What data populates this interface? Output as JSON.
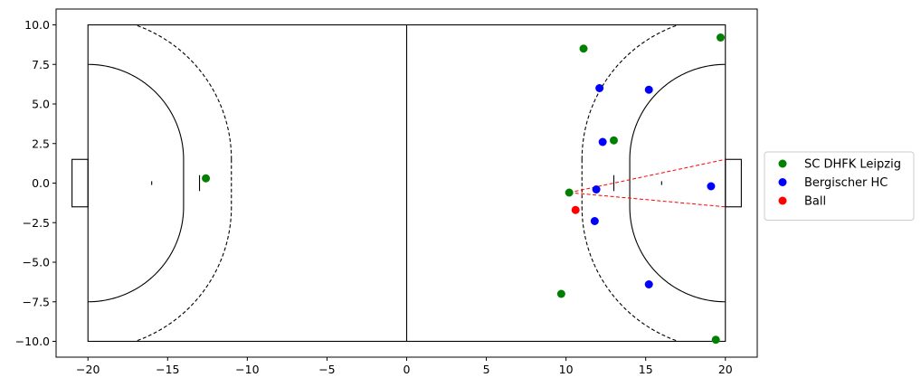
{
  "chart_data": {
    "type": "scatter",
    "xlim": [
      -22,
      22
    ],
    "ylim": [
      -11,
      11
    ],
    "x_ticks": [
      -20,
      -15,
      -10,
      -5,
      0,
      5,
      10,
      15,
      20
    ],
    "y_ticks": [
      10.0,
      7.5,
      5.0,
      2.5,
      0.0,
      -2.5,
      -5.0,
      -7.5,
      -10.0
    ],
    "x_tick_labels": [
      "−20",
      "−15",
      "−10",
      "−5",
      "0",
      "5",
      "10",
      "15",
      "20"
    ],
    "y_tick_labels": [
      "10.0",
      "7.5",
      "5.0",
      "2.5",
      "0.0",
      "−2.5",
      "−5.0",
      "−7.5",
      "−10.0"
    ],
    "grid": false,
    "legend_position": "outside right, vertically centered",
    "series": [
      {
        "name": "SC DHFK Leipzig",
        "color": "#008000",
        "points": [
          [
            -12.6,
            0.3
          ],
          [
            11.1,
            8.5
          ],
          [
            19.7,
            9.2
          ],
          [
            13.0,
            2.7
          ],
          [
            10.2,
            -0.6
          ],
          [
            9.7,
            -7.0
          ],
          [
            19.4,
            -9.9
          ]
        ]
      },
      {
        "name": "Bergischer HC",
        "color": "#0000ff",
        "points": [
          [
            12.1,
            6.0
          ],
          [
            15.2,
            5.9
          ],
          [
            12.3,
            2.6
          ],
          [
            11.9,
            -0.4
          ],
          [
            19.1,
            -0.2
          ],
          [
            11.8,
            -2.4
          ],
          [
            15.2,
            -6.4
          ]
        ]
      },
      {
        "name": "Ball",
        "color": "#ff0000",
        "points": [
          [
            10.6,
            -1.7
          ]
        ]
      }
    ],
    "shooting_lines": {
      "from": [
        10.2,
        -0.6
      ],
      "to": [
        [
          20,
          1.5
        ],
        [
          20,
          -1.5
        ]
      ],
      "color": "#ff0000"
    },
    "court": {
      "half_length": 20,
      "half_width": 10,
      "goal_depth": 1,
      "goal_half_width": 1.5,
      "goal_area_radius": 6,
      "free_throw_radius": 9,
      "seven_m_distance": 7,
      "four_m_distance": 4
    }
  }
}
